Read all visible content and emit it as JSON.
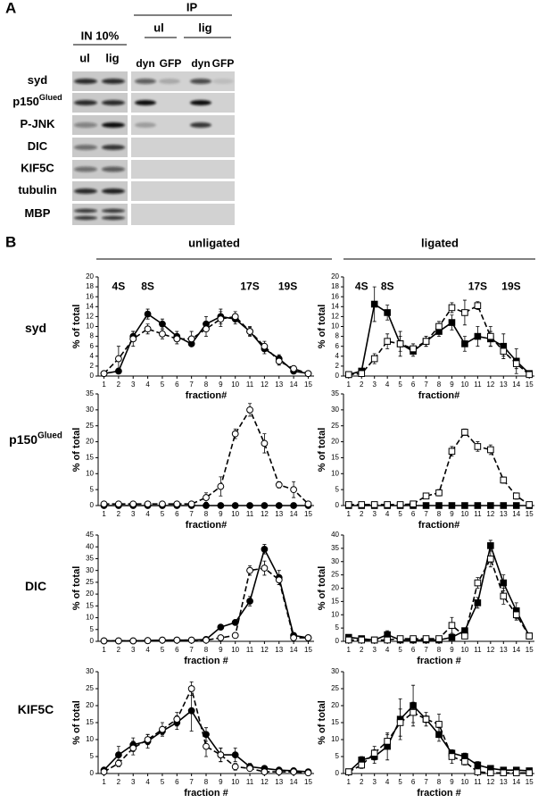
{
  "panel_a": {
    "label": "A",
    "ip_label": "IP",
    "input_label": "IN 10%",
    "input_lanes": [
      "ul",
      "lig"
    ],
    "ip_groups": [
      {
        "name": "ul",
        "lanes": [
          "dyn",
          "GFP"
        ]
      },
      {
        "name": "lig",
        "lanes": [
          "dyn",
          "GFP"
        ]
      }
    ],
    "rows": [
      {
        "label": "syd"
      },
      {
        "label": "p150",
        "superscript": "Glued"
      },
      {
        "label": "P-JNK"
      },
      {
        "label": "DIC"
      },
      {
        "label": "KIF5C"
      },
      {
        "label": "tubulin"
      },
      {
        "label": "MBP"
      }
    ]
  },
  "panel_b": {
    "label": "B",
    "column_titles": [
      "unligated",
      "ligated"
    ],
    "row_labels": [
      {
        "label": "syd"
      },
      {
        "label": "p150",
        "superscript": "Glued"
      },
      {
        "label": "DIC"
      },
      {
        "label": "KIF5C"
      }
    ]
  },
  "chart_data": [
    {
      "type": "line",
      "ylabel": "% of total",
      "xlabel": "fraction#",
      "x": [
        1,
        2,
        3,
        4,
        5,
        6,
        7,
        8,
        9,
        10,
        11,
        12,
        13,
        14,
        15
      ],
      "xlim": [
        0.6,
        15.4
      ],
      "xticks": [
        1,
        2,
        3,
        4,
        5,
        6,
        7,
        8,
        9,
        10,
        11,
        12,
        13,
        14,
        15
      ],
      "ylim": [
        0,
        20
      ],
      "yticks": [
        0,
        2,
        4,
        6,
        8,
        10,
        12,
        14,
        16,
        18,
        20
      ],
      "annotations": [
        {
          "text": "4S",
          "x": 2,
          "y": 18
        },
        {
          "text": "8S",
          "x": 4,
          "y": 18
        },
        {
          "text": "17S",
          "x": 11,
          "y": 18
        },
        {
          "text": "19S",
          "x": 13.6,
          "y": 18
        }
      ],
      "series": [
        {
          "marker": "circle",
          "filled": true,
          "dashed": false,
          "color": "#000000",
          "values": [
            0.5,
            1,
            8,
            12.5,
            10.5,
            8,
            6.5,
            10.5,
            12,
            11.5,
            9,
            5.5,
            3.5,
            1,
            0.5
          ],
          "errors": [
            0.3,
            0.5,
            1,
            1,
            1,
            1,
            0.5,
            1.5,
            1.5,
            1,
            0.8,
            1,
            0.8,
            0.5,
            0.3
          ]
        },
        {
          "marker": "circle",
          "filled": false,
          "dashed": true,
          "color": "#000000",
          "values": [
            0.5,
            3.5,
            7.5,
            9.5,
            8.5,
            7.5,
            7.5,
            9.5,
            11.5,
            12,
            9,
            6,
            3,
            1.5,
            0.5
          ],
          "errors": [
            0.3,
            2.5,
            1.5,
            1,
            1,
            1,
            1.5,
            1.5,
            1.5,
            1,
            1,
            1,
            0.8,
            0.5,
            0.3
          ]
        }
      ]
    },
    {
      "type": "line",
      "ylabel": "% of total",
      "xlabel": "fraction#",
      "x": [
        1,
        2,
        3,
        4,
        5,
        6,
        7,
        8,
        9,
        10,
        11,
        12,
        13,
        14,
        15
      ],
      "xlim": [
        0.6,
        15.4
      ],
      "xticks": [
        1,
        2,
        3,
        4,
        5,
        6,
        7,
        8,
        9,
        10,
        11,
        12,
        13,
        14,
        15
      ],
      "ylim": [
        0,
        20
      ],
      "yticks": [
        0,
        2,
        4,
        6,
        8,
        10,
        12,
        14,
        16,
        18,
        20
      ],
      "annotations": [
        {
          "text": "4S",
          "x": 2,
          "y": 18
        },
        {
          "text": "8S",
          "x": 4,
          "y": 18
        },
        {
          "text": "17S",
          "x": 11,
          "y": 18
        },
        {
          "text": "19S",
          "x": 13.6,
          "y": 18
        }
      ],
      "series": [
        {
          "marker": "square",
          "filled": true,
          "dashed": false,
          "color": "#000000",
          "values": [
            0.3,
            1,
            14.5,
            12.8,
            6.5,
            5,
            7,
            9,
            10.8,
            6.5,
            8,
            7.5,
            6,
            3,
            0.5
          ],
          "errors": [
            0.3,
            0.5,
            3.5,
            1.5,
            2.5,
            1,
            1,
            1,
            1.5,
            1.5,
            2,
            1.5,
            2.5,
            2.5,
            0.5
          ]
        },
        {
          "marker": "square",
          "filled": false,
          "dashed": true,
          "color": "#000000",
          "values": [
            0.3,
            0.5,
            3.5,
            7,
            6.5,
            5.5,
            7,
            10,
            13.8,
            12.8,
            14.2,
            8,
            5,
            2.5,
            0.3
          ],
          "errors": [
            0.3,
            0.5,
            1,
            1.5,
            1.5,
            1,
            1,
            1,
            1,
            2.5,
            0.8,
            2,
            1,
            1,
            0.3
          ]
        }
      ]
    },
    {
      "type": "line",
      "ylabel": "% of total",
      "xlabel": "fraction#",
      "x": [
        1,
        2,
        3,
        4,
        5,
        6,
        7,
        8,
        9,
        10,
        11,
        12,
        13,
        14,
        15
      ],
      "xlim": [
        0.6,
        15.4
      ],
      "xticks": [
        1,
        2,
        3,
        4,
        5,
        6,
        7,
        8,
        9,
        10,
        11,
        12,
        13,
        14,
        15
      ],
      "ylim": [
        0,
        35
      ],
      "yticks": [
        0,
        5,
        10,
        15,
        20,
        25,
        30,
        35
      ],
      "series": [
        {
          "marker": "circle",
          "filled": true,
          "dashed": false,
          "color": "#000000",
          "values": [
            0,
            0,
            0,
            0,
            0,
            0,
            0,
            0,
            0,
            0,
            0,
            0,
            0,
            0,
            0
          ]
        },
        {
          "marker": "circle",
          "filled": false,
          "dashed": true,
          "color": "#000000",
          "values": [
            0.5,
            0.5,
            0.5,
            0.5,
            0.5,
            0.5,
            0.5,
            2.5,
            6,
            22.5,
            30,
            19.5,
            6.5,
            5,
            0.5
          ],
          "errors": [
            0.3,
            0.3,
            0.3,
            0.3,
            0.3,
            0.3,
            0.3,
            1.5,
            3,
            1.5,
            2,
            3,
            1,
            2.5,
            0.3
          ]
        }
      ]
    },
    {
      "type": "line",
      "ylabel": "% of total",
      "xlabel": "fraction#",
      "x": [
        1,
        2,
        3,
        4,
        5,
        6,
        7,
        8,
        9,
        10,
        11,
        12,
        13,
        14,
        15
      ],
      "xlim": [
        0.6,
        15.4
      ],
      "xticks": [
        1,
        2,
        3,
        4,
        5,
        6,
        7,
        8,
        9,
        10,
        11,
        12,
        13,
        14,
        15
      ],
      "ylim": [
        0,
        35
      ],
      "yticks": [
        0,
        5,
        10,
        15,
        20,
        25,
        30,
        35
      ],
      "series": [
        {
          "marker": "square",
          "filled": true,
          "dashed": false,
          "color": "#000000",
          "values": [
            0,
            0,
            0,
            0,
            0,
            0,
            0,
            0,
            0,
            0,
            0,
            0,
            0,
            0,
            0
          ]
        },
        {
          "marker": "square",
          "filled": false,
          "dashed": true,
          "color": "#000000",
          "values": [
            0.3,
            0.3,
            0.3,
            0.3,
            0.3,
            0.5,
            3,
            4,
            17,
            23,
            18.5,
            17.5,
            8,
            3,
            0.3
          ],
          "errors": [
            0.2,
            0.2,
            0.2,
            0.2,
            0.2,
            0.3,
            0.8,
            1,
            1.5,
            1,
            1.5,
            1.5,
            1,
            1,
            0.2
          ]
        }
      ]
    },
    {
      "type": "line",
      "ylabel": "% of total",
      "xlabel": "fraction #",
      "x": [
        1,
        2,
        3,
        4,
        5,
        6,
        7,
        8,
        9,
        10,
        11,
        12,
        13,
        14,
        15
      ],
      "xlim": [
        0.6,
        15.4
      ],
      "xticks": [
        1,
        2,
        3,
        4,
        5,
        6,
        7,
        8,
        9,
        10,
        11,
        12,
        13,
        14,
        15
      ],
      "ylim": [
        0,
        45
      ],
      "yticks": [
        0,
        5,
        10,
        15,
        20,
        25,
        30,
        35,
        40,
        45
      ],
      "series": [
        {
          "marker": "circle",
          "filled": true,
          "dashed": false,
          "color": "#000000",
          "values": [
            0.2,
            0.2,
            0.2,
            0.3,
            0.5,
            0.5,
            0.5,
            0.8,
            6,
            8,
            17,
            39,
            27,
            2.5,
            1.5
          ],
          "errors": [
            0.2,
            0.2,
            0.2,
            0.2,
            0.3,
            0.3,
            0.3,
            0.5,
            1,
            1,
            2,
            2,
            3,
            1,
            0.5
          ]
        },
        {
          "marker": "circle",
          "filled": false,
          "dashed": true,
          "color": "#000000",
          "values": [
            0.2,
            0.2,
            0.2,
            0.3,
            0.5,
            0.5,
            0.5,
            0.5,
            1.5,
            2.5,
            30,
            31,
            26,
            1.5,
            1.5
          ],
          "errors": [
            0.2,
            0.2,
            0.2,
            0.2,
            0.3,
            0.3,
            0.3,
            0.3,
            0.5,
            1,
            2,
            3,
            2,
            0.8,
            0.5
          ]
        }
      ]
    },
    {
      "type": "line",
      "ylabel": "% of total",
      "xlabel": "fraction #",
      "x": [
        1,
        2,
        3,
        4,
        5,
        6,
        7,
        8,
        9,
        10,
        11,
        12,
        13,
        14,
        15
      ],
      "xlim": [
        0.6,
        15.4
      ],
      "xticks": [
        1,
        2,
        3,
        4,
        5,
        6,
        7,
        8,
        9,
        10,
        11,
        12,
        13,
        14,
        15
      ],
      "ylim": [
        0,
        40
      ],
      "yticks": [
        0,
        5,
        10,
        15,
        20,
        25,
        30,
        35,
        40
      ],
      "series": [
        {
          "marker": "square",
          "filled": true,
          "dashed": false,
          "color": "#000000",
          "values": [
            1.5,
            1,
            0.5,
            2.5,
            0.5,
            0.5,
            0.5,
            0.5,
            1.5,
            4,
            14.5,
            36,
            22,
            11.5,
            2
          ],
          "errors": [
            0.5,
            0.5,
            0.5,
            1.5,
            0.5,
            0.5,
            0.5,
            0.5,
            1,
            1,
            2,
            2,
            3,
            3,
            1
          ]
        },
        {
          "marker": "square",
          "filled": false,
          "dashed": true,
          "color": "#000000",
          "values": [
            0.5,
            0.5,
            0.5,
            0.5,
            1,
            1,
            1,
            1,
            6,
            2,
            22,
            31,
            17,
            10,
            2
          ],
          "errors": [
            0.3,
            0.3,
            0.3,
            0.3,
            0.5,
            0.5,
            0.5,
            0.5,
            3,
            1,
            2,
            3,
            3,
            2,
            1
          ]
        }
      ]
    },
    {
      "type": "line",
      "ylabel": "% of total",
      "xlabel": "fraction #",
      "x": [
        1,
        2,
        3,
        4,
        5,
        6,
        7,
        8,
        9,
        10,
        11,
        12,
        13,
        14,
        15
      ],
      "xlim": [
        0.6,
        15.4
      ],
      "xticks": [
        1,
        2,
        3,
        4,
        5,
        6,
        7,
        8,
        9,
        10,
        11,
        12,
        13,
        14,
        15
      ],
      "ylim": [
        0,
        30
      ],
      "yticks": [
        0,
        5,
        10,
        15,
        20,
        25,
        30
      ],
      "series": [
        {
          "marker": "circle",
          "filled": true,
          "dashed": false,
          "color": "#000000",
          "values": [
            1,
            5.5,
            8.5,
            9.5,
            12.5,
            15,
            18.5,
            11.5,
            5.5,
            5.5,
            2,
            1.5,
            1,
            0.8,
            0.5
          ],
          "errors": [
            0.5,
            2.5,
            2,
            2,
            1,
            2,
            6,
            2,
            2,
            2,
            1,
            0.5,
            0.5,
            0.3,
            0.3
          ]
        },
        {
          "marker": "circle",
          "filled": false,
          "dashed": true,
          "color": "#000000",
          "values": [
            0.5,
            3,
            7.5,
            10,
            13,
            16,
            25,
            8,
            5.5,
            2,
            1.5,
            0.5,
            0.5,
            0.5,
            0.2
          ],
          "errors": [
            0.3,
            1,
            2,
            1.5,
            2,
            2,
            2,
            3,
            2,
            1,
            0.5,
            0.3,
            0.3,
            0.3,
            0.2
          ]
        }
      ]
    },
    {
      "type": "line",
      "ylabel": "% of total",
      "xlabel": "fraction #",
      "x": [
        1,
        2,
        3,
        4,
        5,
        6,
        7,
        8,
        9,
        10,
        11,
        12,
        13,
        14,
        15
      ],
      "xlim": [
        0.6,
        15.4
      ],
      "xticks": [
        1,
        2,
        3,
        4,
        5,
        6,
        7,
        8,
        9,
        10,
        11,
        12,
        13,
        14,
        15
      ],
      "ylim": [
        0,
        30
      ],
      "yticks": [
        0,
        5,
        10,
        15,
        20,
        25,
        30
      ],
      "series": [
        {
          "marker": "square",
          "filled": true,
          "dashed": false,
          "color": "#000000",
          "values": [
            0.5,
            4,
            5,
            8,
            16,
            20,
            16,
            11.5,
            6,
            5,
            2.5,
            1.5,
            1,
            1,
            0.8
          ],
          "errors": [
            0.5,
            1,
            2,
            4,
            6,
            6,
            2,
            2,
            1,
            1,
            1,
            0.5,
            0.5,
            0.5,
            0.3
          ]
        },
        {
          "marker": "square",
          "filled": false,
          "dashed": true,
          "color": "#000000",
          "values": [
            0.5,
            2.5,
            6,
            9.5,
            15,
            18,
            16,
            14.5,
            5,
            3.5,
            0.5,
            0.2,
            0.2,
            0.2,
            0.2
          ],
          "errors": [
            0.3,
            1,
            2,
            2,
            4,
            3,
            1,
            3,
            2,
            1,
            0.3,
            0.2,
            0.2,
            0.2,
            0.2
          ]
        }
      ]
    }
  ]
}
